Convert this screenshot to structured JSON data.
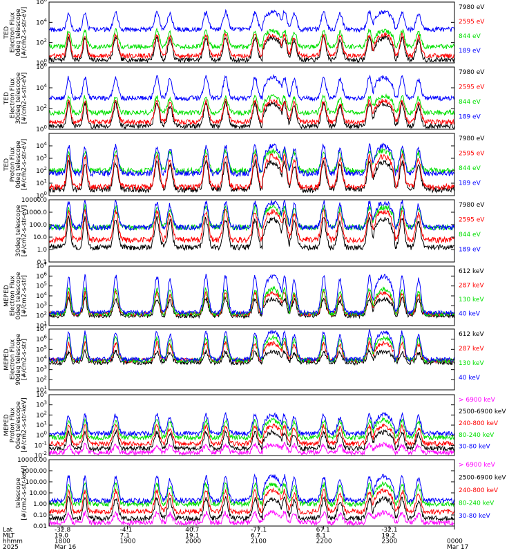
{
  "colors": {
    "black": "#000000",
    "red": "#ff0000",
    "green": "#00e000",
    "blue": "#0000ff",
    "magenta": "#ff00ff"
  },
  "x_axis": {
    "rows": [
      {
        "label": "Lat",
        "values": [
          "-32.8",
          "-4.1",
          "40.7",
          "-77.1",
          "67.1",
          "-32.1",
          ""
        ]
      },
      {
        "label": "MLT",
        "values": [
          "19.0",
          "7.1",
          "19.1",
          "6.7",
          "8.1",
          "19.2",
          ""
        ]
      },
      {
        "label": "hhmm",
        "values": [
          "1800",
          "1900",
          "2000",
          "2100",
          "2200",
          "2300",
          "0000"
        ]
      },
      {
        "label": "2025",
        "values": [
          "Mar 16",
          "",
          "",
          "",
          "",
          "",
          "Mar 17"
        ]
      }
    ]
  },
  "chart_data": [
    {
      "type": "line",
      "id": "ted-electron-0deg",
      "ylabel": [
        "TED",
        "Electron Flux",
        "0deg telescope",
        "[#/cm2-s-str-eV]"
      ],
      "ylog": true,
      "ylim": [
        1,
        1000000
      ],
      "yticks": [
        {
          "v": 1,
          "b": "10",
          "e": "0"
        },
        {
          "v": 100,
          "b": "10",
          "e": "2"
        },
        {
          "v": 10000,
          "b": "10",
          "e": "4"
        },
        {
          "v": 1000000,
          "b": "10",
          "e": "6"
        }
      ],
      "legend": [
        {
          "text": "7980 eV",
          "color": "black"
        },
        {
          "text": "2595 eV",
          "color": "red"
        },
        {
          "text": "844 eV",
          "color": "green"
        },
        {
          "text": "189 eV",
          "color": "blue"
        }
      ],
      "series_levels": [
        {
          "name": "7980 eV",
          "color": "black",
          "base": 2,
          "peak": 300
        },
        {
          "name": "2595 eV",
          "color": "red",
          "base": 5,
          "peak": 600
        },
        {
          "name": "844 eV",
          "color": "green",
          "base": 40,
          "peak": 1500
        },
        {
          "name": "189 eV",
          "color": "blue",
          "base": 2000,
          "peak": 100000
        }
      ]
    },
    {
      "type": "line",
      "id": "ted-electron-30deg",
      "ylabel": [
        "TED",
        "Electron Flux",
        "30deg telescope",
        "[#/cm2-s-str-eV]"
      ],
      "ylog": true,
      "ylim": [
        1,
        1000000
      ],
      "yticks": [
        {
          "v": 1,
          "b": "10",
          "e": "0"
        },
        {
          "v": 100,
          "b": "10",
          "e": "2"
        },
        {
          "v": 10000,
          "b": "10",
          "e": "4"
        },
        {
          "v": 1000000,
          "b": "10",
          "e": "6"
        }
      ],
      "legend": [
        {
          "text": "7980 eV",
          "color": "black"
        },
        {
          "text": "2595 eV",
          "color": "red"
        },
        {
          "text": "844 eV",
          "color": "green"
        },
        {
          "text": "189 eV",
          "color": "blue"
        }
      ],
      "series_levels": [
        {
          "name": "7980 eV",
          "color": "black",
          "base": 2,
          "peak": 300
        },
        {
          "name": "2595 eV",
          "color": "red",
          "base": 5,
          "peak": 600
        },
        {
          "name": "844 eV",
          "color": "green",
          "base": 40,
          "peak": 1500
        },
        {
          "name": "189 eV",
          "color": "blue",
          "base": 1000,
          "peak": 100000
        }
      ]
    },
    {
      "type": "line",
      "id": "ted-proton-0deg",
      "ylabel": [
        "TED",
        "Proton Flux",
        "0deg telescope",
        "[#/cm2-s-str-eV]"
      ],
      "ylog": true,
      "ylim": [
        1,
        100000
      ],
      "yticks": [
        {
          "v": 1,
          "b": "10",
          "e": "0"
        },
        {
          "v": 10,
          "b": "10",
          "e": "1"
        },
        {
          "v": 100,
          "b": "10",
          "e": "2"
        },
        {
          "v": 1000,
          "b": "10",
          "e": "3"
        },
        {
          "v": 10000,
          "b": "10",
          "e": "4"
        }
      ],
      "legend": [
        {
          "text": "7980 eV",
          "color": "black"
        },
        {
          "text": "2595 eV",
          "color": "red"
        },
        {
          "text": "844 eV",
          "color": "green"
        },
        {
          "text": "189 eV",
          "color": "blue"
        }
      ],
      "series_levels": [
        {
          "name": "7980 eV",
          "color": "black",
          "base": 3,
          "peak": 500
        },
        {
          "name": "2595 eV",
          "color": "red",
          "base": 5,
          "peak": 1500
        },
        {
          "name": "844 eV",
          "color": "green",
          "base": 100,
          "peak": 4000
        },
        {
          "name": "189 eV",
          "color": "blue",
          "base": 60,
          "peak": 10000
        }
      ]
    },
    {
      "type": "line",
      "id": "ted-proton-30deg",
      "ylabel": [
        "30deg telescope",
        "[#/cm2-s-str-eV]"
      ],
      "ylog": true,
      "ylim": [
        0.1,
        10000
      ],
      "yticks": [
        {
          "v": 0.1,
          "t": "0.1"
        },
        {
          "v": 1,
          "t": "1.0"
        },
        {
          "v": 10,
          "t": "10.0"
        },
        {
          "v": 100,
          "t": "100.0"
        },
        {
          "v": 1000,
          "t": "1000.0"
        },
        {
          "v": 10000,
          "t": "10000.0"
        }
      ],
      "legend": [
        {
          "text": "7980 eV",
          "color": "black"
        },
        {
          "text": "2595 eV",
          "color": "red"
        },
        {
          "text": "844 eV",
          "color": "green"
        },
        {
          "text": "189 eV",
          "color": "blue"
        }
      ],
      "series_levels": [
        {
          "name": "7980 eV",
          "color": "black",
          "base": 1.5,
          "peak": 300
        },
        {
          "name": "2595 eV",
          "color": "red",
          "base": 6,
          "peak": 1200
        },
        {
          "name": "844 eV",
          "color": "green",
          "base": 60,
          "peak": 2500
        },
        {
          "name": "189 eV",
          "color": "blue",
          "base": 60,
          "peak": 6000
        }
      ]
    },
    {
      "type": "line",
      "id": "meped-electron-0deg",
      "ylabel": [
        "MEPED",
        "Electron Flux",
        "0deg telescope",
        "[#/cm2-s-str]"
      ],
      "ylog": true,
      "ylim": [
        10,
        10000000
      ],
      "yticks": [
        {
          "v": 10,
          "b": "10",
          "e": "1"
        },
        {
          "v": 100,
          "b": "10",
          "e": "2"
        },
        {
          "v": 1000,
          "b": "10",
          "e": "3"
        },
        {
          "v": 10000,
          "b": "10",
          "e": "4"
        },
        {
          "v": 100000,
          "b": "10",
          "e": "5"
        },
        {
          "v": 1000000,
          "b": "10",
          "e": "6"
        },
        {
          "v": 10000000,
          "b": "10",
          "e": "7"
        }
      ],
      "legend": [
        {
          "text": "612 keV",
          "color": "black"
        },
        {
          "text": "287 keV",
          "color": "red"
        },
        {
          "text": "130 keV",
          "color": "green"
        },
        {
          "text": "40 keV",
          "color": "blue"
        }
      ],
      "series_levels": [
        {
          "name": "612 keV",
          "color": "black",
          "base": 100,
          "peak": 5000
        },
        {
          "name": "287 keV",
          "color": "red",
          "base": 150,
          "peak": 20000
        },
        {
          "name": "130 keV",
          "color": "green",
          "base": 150,
          "peak": 50000
        },
        {
          "name": "40 keV",
          "color": "blue",
          "base": 200,
          "peak": 1000000
        }
      ]
    },
    {
      "type": "line",
      "id": "meped-electron-90deg",
      "ylabel": [
        "MEPED",
        "Electron Flux",
        "90deg telescope",
        "[#/cm2-s-str]"
      ],
      "ylog": true,
      "ylim": [
        10,
        10000000
      ],
      "yticks": [
        {
          "v": 10,
          "b": "10",
          "e": "1"
        },
        {
          "v": 100,
          "b": "10",
          "e": "2"
        },
        {
          "v": 1000,
          "b": "10",
          "e": "3"
        },
        {
          "v": 10000,
          "b": "10",
          "e": "4"
        },
        {
          "v": 100000,
          "b": "10",
          "e": "5"
        },
        {
          "v": 1000000,
          "b": "10",
          "e": "6"
        },
        {
          "v": 10000000,
          "b": "10",
          "e": "7"
        }
      ],
      "legend": [
        {
          "text": "612 keV",
          "color": "black"
        },
        {
          "text": "287 keV",
          "color": "red"
        },
        {
          "text": "130 keV",
          "color": "green"
        },
        {
          "text": "40 keV",
          "color": "blue"
        }
      ],
      "series_levels": [
        {
          "name": "612 keV",
          "color": "black",
          "base": 5000,
          "peak": 60000
        },
        {
          "name": "287 keV",
          "color": "red",
          "base": 8000,
          "peak": 400000
        },
        {
          "name": "130 keV",
          "color": "green",
          "base": 8000,
          "peak": 1500000
        },
        {
          "name": "40 keV",
          "color": "blue",
          "base": 10000,
          "peak": 5000000
        }
      ]
    },
    {
      "type": "line",
      "id": "meped-proton-0deg",
      "ylabel": [
        "MEPED",
        "Proton Flux",
        "0deg telescope",
        "[#/cm2-s-str-keV]"
      ],
      "ylog": true,
      "ylim": [
        0.01,
        10000
      ],
      "yticks": [
        {
          "v": 0.01,
          "b": "10",
          "e": "-2"
        },
        {
          "v": 0.1,
          "b": "10",
          "e": "-1"
        },
        {
          "v": 1,
          "b": "10",
          "e": "0"
        },
        {
          "v": 10,
          "b": "10",
          "e": "1"
        },
        {
          "v": 100,
          "b": "10",
          "e": "2"
        },
        {
          "v": 1000,
          "b": "10",
          "e": "3"
        },
        {
          "v": 10000,
          "b": "10",
          "e": "4"
        }
      ],
      "legend": [
        {
          "text": "> 6900 keV",
          "color": "magenta"
        },
        {
          "text": "2500-6900 keV",
          "color": "black"
        },
        {
          "text": "240-800 keV",
          "color": "red"
        },
        {
          "text": "80-240 keV",
          "color": "green"
        },
        {
          "text": "30-80 keV",
          "color": "blue"
        }
      ],
      "series_levels": [
        {
          "name": "> 6900 keV",
          "color": "magenta",
          "base": 0.02,
          "peak": 0.12
        },
        {
          "name": "2500-6900 keV",
          "color": "black",
          "base": 0.05,
          "peak": 2
        },
        {
          "name": "240-800 keV",
          "color": "red",
          "base": 0.15,
          "peak": 8
        },
        {
          "name": "80-240 keV",
          "color": "green",
          "base": 0.6,
          "peak": 30
        },
        {
          "name": "30-80 keV",
          "color": "blue",
          "base": 1.5,
          "peak": 100
        }
      ]
    },
    {
      "type": "line",
      "id": "meped-proton-90deg",
      "ylabel": [
        "telescope",
        "[#/cm2-s-str-keV]"
      ],
      "ylog": true,
      "ylim": [
        0.01,
        10000
      ],
      "yticks": [
        {
          "v": 0.01,
          "t": "0.01"
        },
        {
          "v": 0.1,
          "t": "0.10"
        },
        {
          "v": 1,
          "t": "1.00"
        },
        {
          "v": 10,
          "t": "10.00"
        },
        {
          "v": 100,
          "t": "100.00"
        },
        {
          "v": 1000,
          "t": "1000.00"
        },
        {
          "v": 10000,
          "t": "10000.00"
        }
      ],
      "legend": [
        {
          "text": "> 6900 keV",
          "color": "magenta"
        },
        {
          "text": "2500-6900 keV",
          "color": "black"
        },
        {
          "text": "240-800 keV",
          "color": "red"
        },
        {
          "text": "80-240 keV",
          "color": "green"
        },
        {
          "text": "30-80 keV",
          "color": "blue"
        }
      ],
      "series_levels": [
        {
          "name": "> 6900 keV",
          "color": "magenta",
          "base": 0.02,
          "peak": 0.15
        },
        {
          "name": "2500-6900 keV",
          "color": "black",
          "base": 0.05,
          "peak": 3
        },
        {
          "name": "240-800 keV",
          "color": "red",
          "base": 0.2,
          "peak": 15
        },
        {
          "name": "80-240 keV",
          "color": "green",
          "base": 1,
          "peak": 60
        },
        {
          "name": "30-80 keV",
          "color": "blue",
          "base": 2,
          "peak": 300
        }
      ]
    }
  ]
}
